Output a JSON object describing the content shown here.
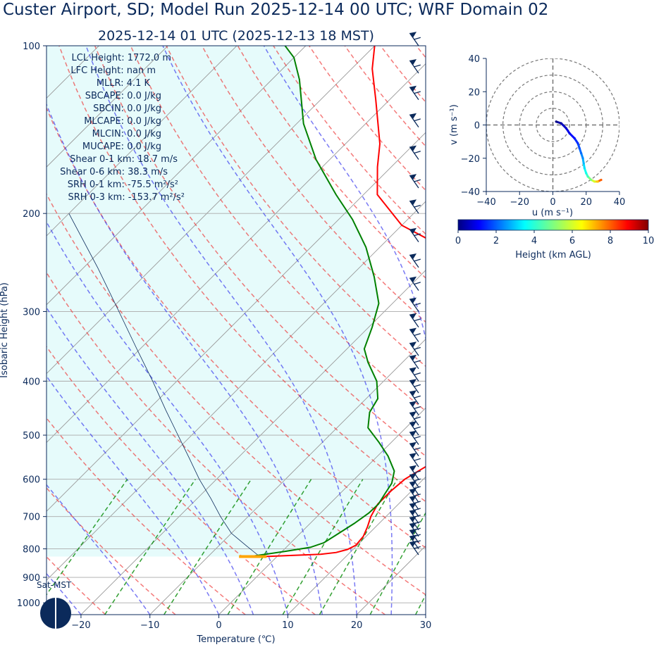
{
  "title": "Custer Airport, SD; Model Run 2025-12-14 00 UTC; WRF Domain 02",
  "subtitle": "2025-12-14 01 UTC  (2025-12-13 18 MST)",
  "colors": {
    "text": "#0b2a5b",
    "temperature": "#ff0000",
    "dewpoint": "#008000",
    "parcel": "#0b2a5b",
    "cape_fill": "#e6fbfb",
    "dry_adiabat": "#ee3333",
    "moist_adiabat": "#3333ee",
    "mixing_ratio": "#008800",
    "isotherm": "#999999",
    "isobar": "#aaaaaa",
    "barbs": "#0b2a5b",
    "surface_marker": "#ffa500"
  },
  "stats": [
    "LCL Height: 1772.0 m",
    "LFC Height: nan m",
    "MLLR: 4.1 K",
    "SBCAPE: 0.0 J/kg",
    "SBCIN: 0.0 J/kg",
    "MLCAPE: 0.0 J/kg",
    "MLCIN: 0.0 J/kg",
    "MUCAPE: 0.0 J/kg",
    "Shear 0-1 km: 18.7 m/s",
    "Shear 0-6 km: 38.3 m/s",
    "SRH 0-1 km: -75.5 m²/s²",
    "SRH 0-3 km: -153.7 m²/s²"
  ],
  "sun_label": "Sat-MST",
  "chart_data": [
    {
      "type": "line",
      "subtype": "skew-t log-p",
      "xlabel": "Temperature (℃)",
      "ylabel": "Isobaric Height (hPa)",
      "xlim": [
        -25,
        30
      ],
      "ylim": [
        1050,
        100
      ],
      "x_ticks": [
        "−20",
        "−10",
        "0",
        "10",
        "20",
        "30"
      ],
      "x_tick_values": [
        -20,
        -10,
        0,
        10,
        20,
        30
      ],
      "y_ticks": [
        "100",
        "200",
        "300",
        "400",
        "500",
        "600",
        "700",
        "800",
        "900",
        "1000"
      ],
      "y_tick_values": [
        100,
        200,
        300,
        400,
        500,
        600,
        700,
        800,
        900,
        1000
      ],
      "series": [
        {
          "name": "Temperature",
          "points": [
            [
              826,
              -2
            ],
            [
              822,
              2
            ],
            [
              818,
              6
            ],
            [
              812,
              8
            ],
            [
              802,
              9.2
            ],
            [
              788,
              9.8
            ],
            [
              760,
              9.6
            ],
            [
              730,
              8.8
            ],
            [
              700,
              7.8
            ],
            [
              665,
              7
            ],
            [
              630,
              7
            ],
            [
              600,
              7.3
            ],
            [
              570,
              8.5
            ],
            [
              545,
              9.4
            ],
            [
              520,
              10
            ],
            [
              500,
              10
            ],
            [
              480,
              9.2
            ],
            [
              450,
              7.5
            ],
            [
              400,
              4.8
            ],
            [
              350,
              1.2
            ],
            [
              300,
              -5.5
            ],
            [
              270,
              -11
            ],
            [
              245,
              -17
            ],
            [
              225,
              -23
            ],
            [
              210,
              -30
            ],
            [
              185,
              -38
            ],
            [
              165,
              -42
            ],
            [
              150,
              -45
            ],
            [
              125,
              -52
            ],
            [
              110,
              -57
            ],
            [
              100,
              -60
            ]
          ]
        },
        {
          "name": "Dewpoint",
          "points": [
            [
              826,
              -4
            ],
            [
              818,
              -2
            ],
            [
              808,
              0.5
            ],
            [
              795,
              3.5
            ],
            [
              780,
              4.8
            ],
            [
              750,
              5.6
            ],
            [
              720,
              6.4
            ],
            [
              690,
              7
            ],
            [
              665,
              7.1
            ],
            [
              640,
              6.6
            ],
            [
              610,
              6
            ],
            [
              580,
              4.6
            ],
            [
              545,
              1.5
            ],
            [
              515,
              -1.8
            ],
            [
              485,
              -5.5
            ],
            [
              455,
              -7.5
            ],
            [
              430,
              -8.3
            ],
            [
              400,
              -11
            ],
            [
              370,
              -15
            ],
            [
              350,
              -17.5
            ],
            [
              320,
              -19.5
            ],
            [
              290,
              -22
            ],
            [
              260,
              -26.5
            ],
            [
              230,
              -32
            ],
            [
              205,
              -38
            ],
            [
              185,
              -44
            ],
            [
              160,
              -52
            ],
            [
              138,
              -59
            ],
            [
              115,
              -66
            ],
            [
              105,
              -70
            ],
            [
              100,
              -73
            ]
          ]
        },
        {
          "name": "Parcel",
          "points": [
            [
              826,
              -2.5
            ],
            [
              790,
              -6
            ],
            [
              750,
              -10
            ],
            [
              700,
              -14
            ],
            [
              650,
              -18
            ],
            [
              600,
              -22.5
            ],
            [
              550,
              -27
            ],
            [
              500,
              -32
            ],
            [
              450,
              -37.5
            ],
            [
              400,
              -43.5
            ],
            [
              350,
              -50.5
            ],
            [
              300,
              -58.5
            ],
            [
              250,
              -68
            ],
            [
              200,
              -80
            ]
          ]
        }
      ],
      "surface_marker": {
        "pressure_hpa": 826,
        "temperature_c": [
          -5.5,
          -1.5
        ]
      },
      "wind_barbs_hpa": [
        100,
        112,
        125,
        140,
        160,
        180,
        200,
        225,
        250,
        275,
        300,
        320,
        340,
        360,
        380,
        400,
        420,
        440,
        460,
        480,
        500,
        520,
        545,
        570,
        600,
        620,
        640,
        660,
        680,
        700,
        720,
        740,
        760,
        780,
        800,
        820
      ]
    },
    {
      "type": "scatter",
      "subtype": "hodograph",
      "xlabel": "u (m s⁻¹)",
      "ylabel": "v (m s⁻¹)",
      "xlim": [
        -40,
        40
      ],
      "ylim": [
        -40,
        40
      ],
      "x_ticks": [
        "−40",
        "−20",
        "0",
        "20",
        "40"
      ],
      "x_tick_values": [
        -40,
        -20,
        0,
        20,
        40
      ],
      "y_ticks": [
        "−40",
        "−20",
        "0",
        "20",
        "40"
      ],
      "y_tick_values": [
        -40,
        -20,
        0,
        20,
        40
      ],
      "rings": [
        10,
        20,
        30,
        40
      ],
      "points": [
        {
          "u": 2,
          "v": 2,
          "h": 0
        },
        {
          "u": 5,
          "v": 1,
          "h": 0.3
        },
        {
          "u": 8,
          "v": -2,
          "h": 0.6
        },
        {
          "u": 10,
          "v": -5,
          "h": 0.9
        },
        {
          "u": 13,
          "v": -8,
          "h": 1.2
        },
        {
          "u": 15,
          "v": -11,
          "h": 1.5
        },
        {
          "u": 16,
          "v": -14,
          "h": 1.8
        },
        {
          "u": 17,
          "v": -17,
          "h": 2.1
        },
        {
          "u": 18,
          "v": -20,
          "h": 2.4
        },
        {
          "u": 18.5,
          "v": -23,
          "h": 2.8
        },
        {
          "u": 19,
          "v": -26,
          "h": 3.2
        },
        {
          "u": 20,
          "v": -29,
          "h": 3.7
        },
        {
          "u": 21,
          "v": -31,
          "h": 4.2
        },
        {
          "u": 23,
          "v": -33,
          "h": 5
        },
        {
          "u": 25,
          "v": -34,
          "h": 6
        },
        {
          "u": 27,
          "v": -34,
          "h": 7
        },
        {
          "u": 29,
          "v": -33,
          "h": 8
        }
      ],
      "colorbar": {
        "label": "Height (km AGL)",
        "range": [
          0,
          10
        ],
        "ticks": [
          "0",
          "2",
          "4",
          "6",
          "8",
          "10"
        ],
        "tick_values": [
          0,
          2,
          4,
          6,
          8,
          10
        ]
      }
    }
  ]
}
